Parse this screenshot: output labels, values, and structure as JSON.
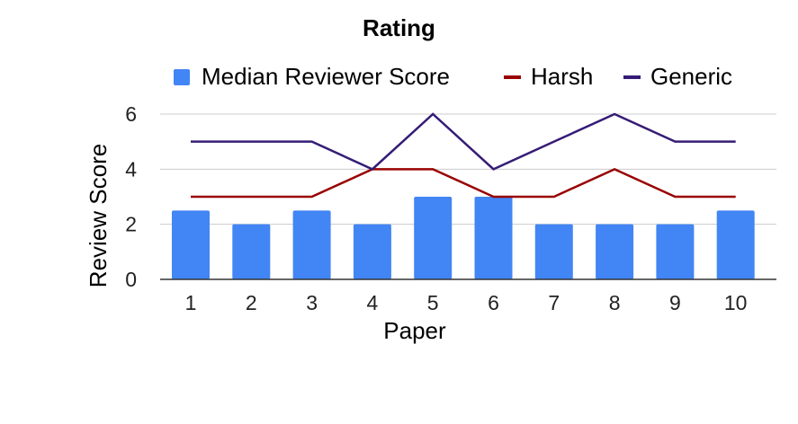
{
  "chart_data": {
    "type": "bar",
    "title": "Rating",
    "xlabel": "Paper",
    "ylabel": "Review Score",
    "categories": [
      "1",
      "2",
      "3",
      "4",
      "5",
      "6",
      "7",
      "8",
      "9",
      "10"
    ],
    "ylim": [
      0,
      6
    ],
    "yticks": [
      "0",
      "2",
      "4",
      "6"
    ],
    "grid": true,
    "legend_position": "top",
    "series": [
      {
        "name": "Median Reviewer Score",
        "kind": "bar",
        "color": "#4285f4",
        "values": [
          2.5,
          2,
          2.5,
          2,
          3,
          3,
          2,
          2,
          2,
          2.5
        ]
      },
      {
        "name": "Harsh",
        "kind": "line",
        "color": "#990000",
        "values": [
          3,
          3,
          3,
          4,
          4,
          3,
          3,
          4,
          3,
          3
        ]
      },
      {
        "name": "Generic",
        "kind": "line",
        "color": "#351c75",
        "values": [
          5,
          5,
          5,
          4,
          6,
          4,
          5,
          6,
          5,
          5
        ]
      }
    ]
  }
}
